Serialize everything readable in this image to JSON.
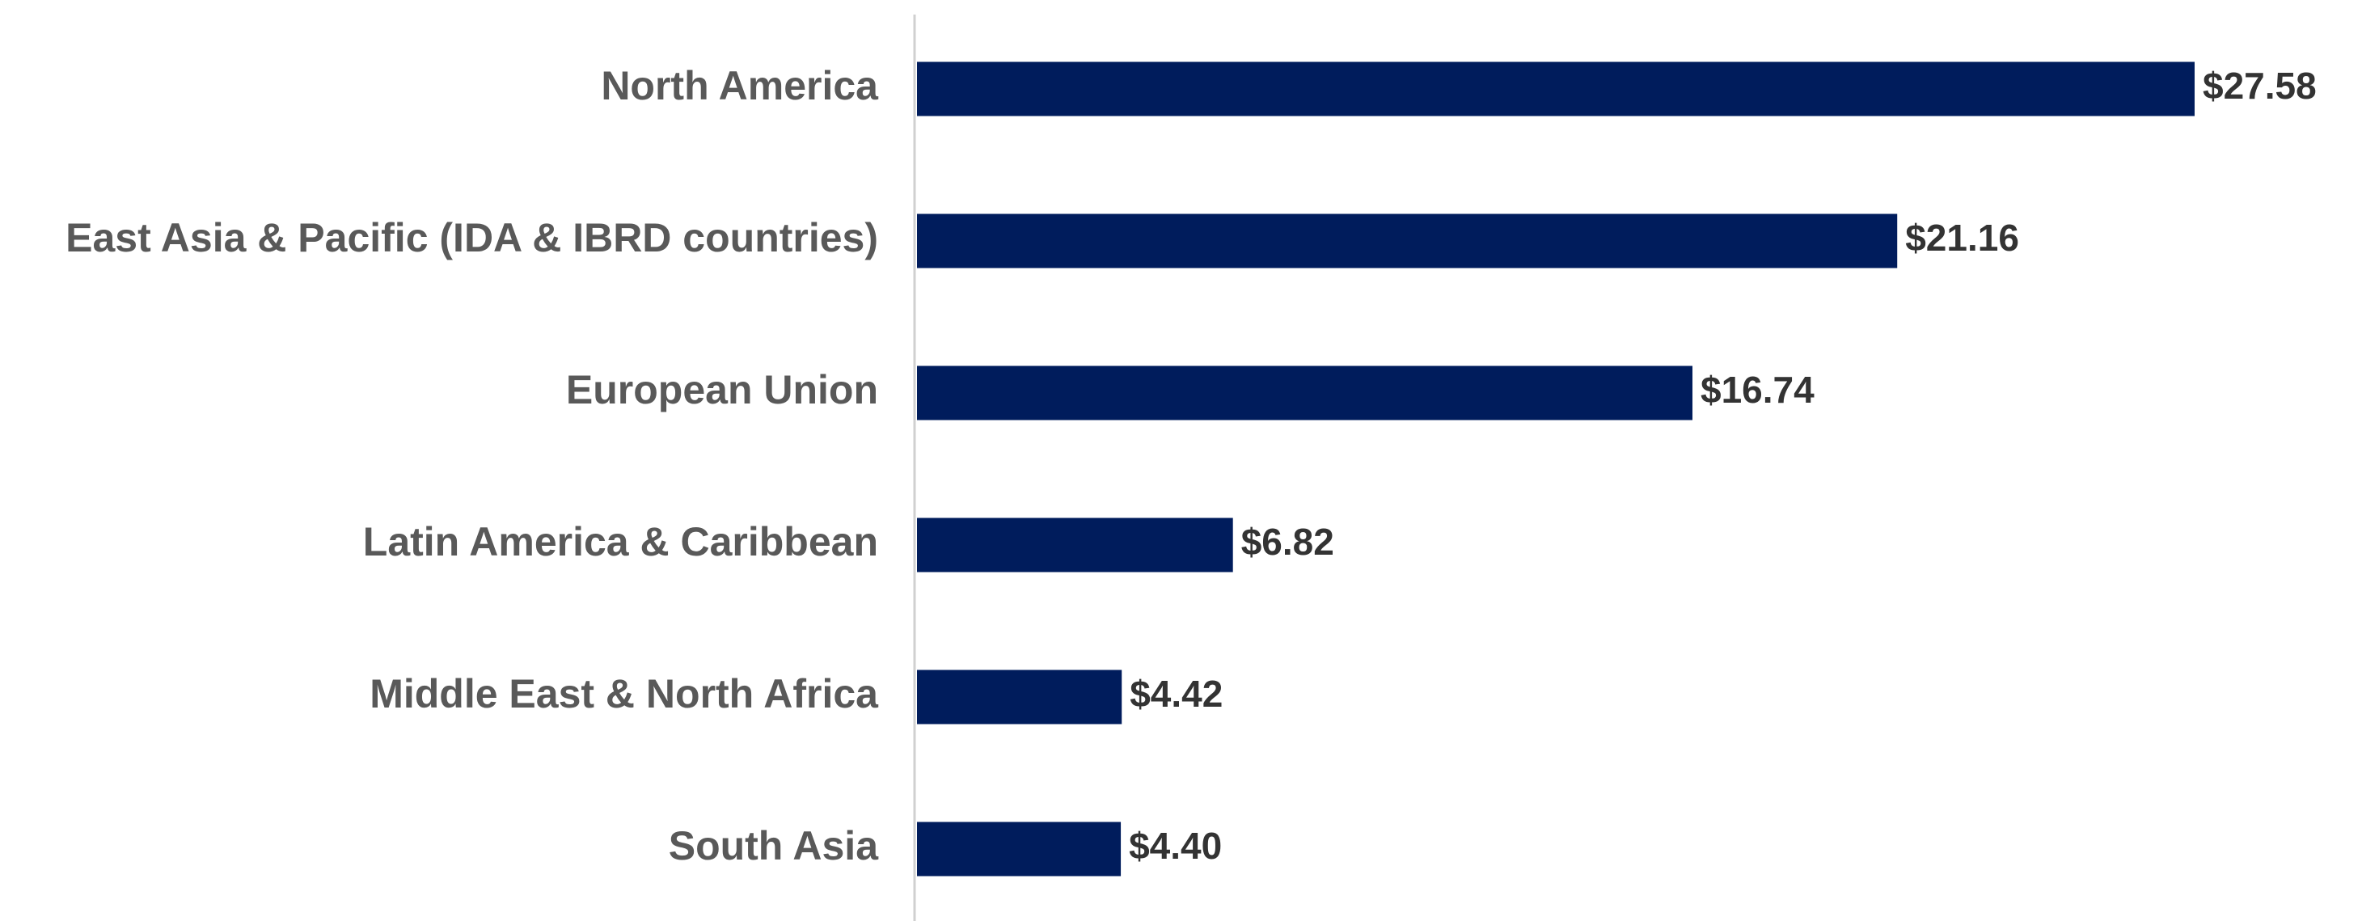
{
  "chart_data": {
    "type": "hbar",
    "categories": [
      "North America",
      "East Asia & Pacific (IDA & IBRD countries)",
      "European Union",
      "Latin America & Caribbean",
      "Middle East & North Africa",
      "South Asia"
    ],
    "values": [
      27.58,
      21.16,
      16.74,
      6.82,
      4.42,
      4.4
    ],
    "value_labels": [
      "$27.58",
      "$21.16",
      "$16.74",
      "$6.82",
      "$4.42",
      "$4.40"
    ],
    "color": "#001c5c"
  }
}
